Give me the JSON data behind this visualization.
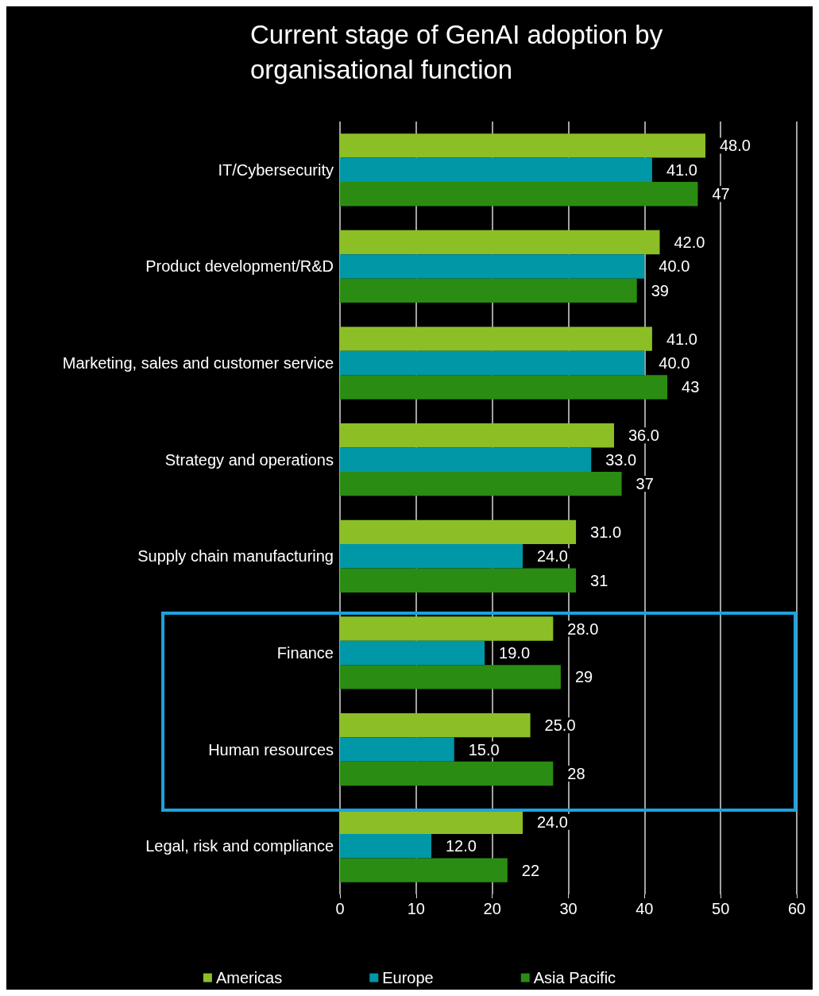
{
  "chart_data": {
    "type": "bar",
    "orientation": "horizontal",
    "title": "Current stage of GenAI adoption by organisational function",
    "categories": [
      "IT/Cybersecurity",
      "Product development/R&D",
      "Marketing, sales and customer service",
      "Strategy and operations",
      "Supply chain manufacturing",
      "Finance",
      "Human resources",
      "Legal, risk and compliance"
    ],
    "series": [
      {
        "name": "Americas",
        "color": "#8cbf26",
        "values": [
          48,
          42,
          41,
          36,
          31,
          28,
          25,
          24
        ],
        "value_labels": [
          "48.0",
          "42.0",
          "41.0",
          "36.0",
          "31.0",
          "28.0",
          "25.0",
          "24.0"
        ]
      },
      {
        "name": "Europe",
        "color": "#0097a7",
        "values": [
          41,
          40,
          40,
          33,
          24,
          19,
          15,
          12
        ],
        "value_labels": [
          "41.0",
          "40.0",
          "40.0",
          "33.0",
          "24.0",
          "19.0",
          "15.0",
          "12.0"
        ]
      },
      {
        "name": "Asia Pacific",
        "color": "#2a8c12",
        "values": [
          47,
          39,
          43,
          37,
          31,
          29,
          28,
          22
        ],
        "value_labels": [
          "47",
          "39",
          "43",
          "37",
          "31",
          "29",
          "28",
          "22"
        ]
      }
    ],
    "xlim": [
      0,
      60
    ],
    "xticks": [
      0,
      10,
      20,
      30,
      40,
      50,
      60
    ],
    "grid": "x",
    "legend": "bottom"
  }
}
